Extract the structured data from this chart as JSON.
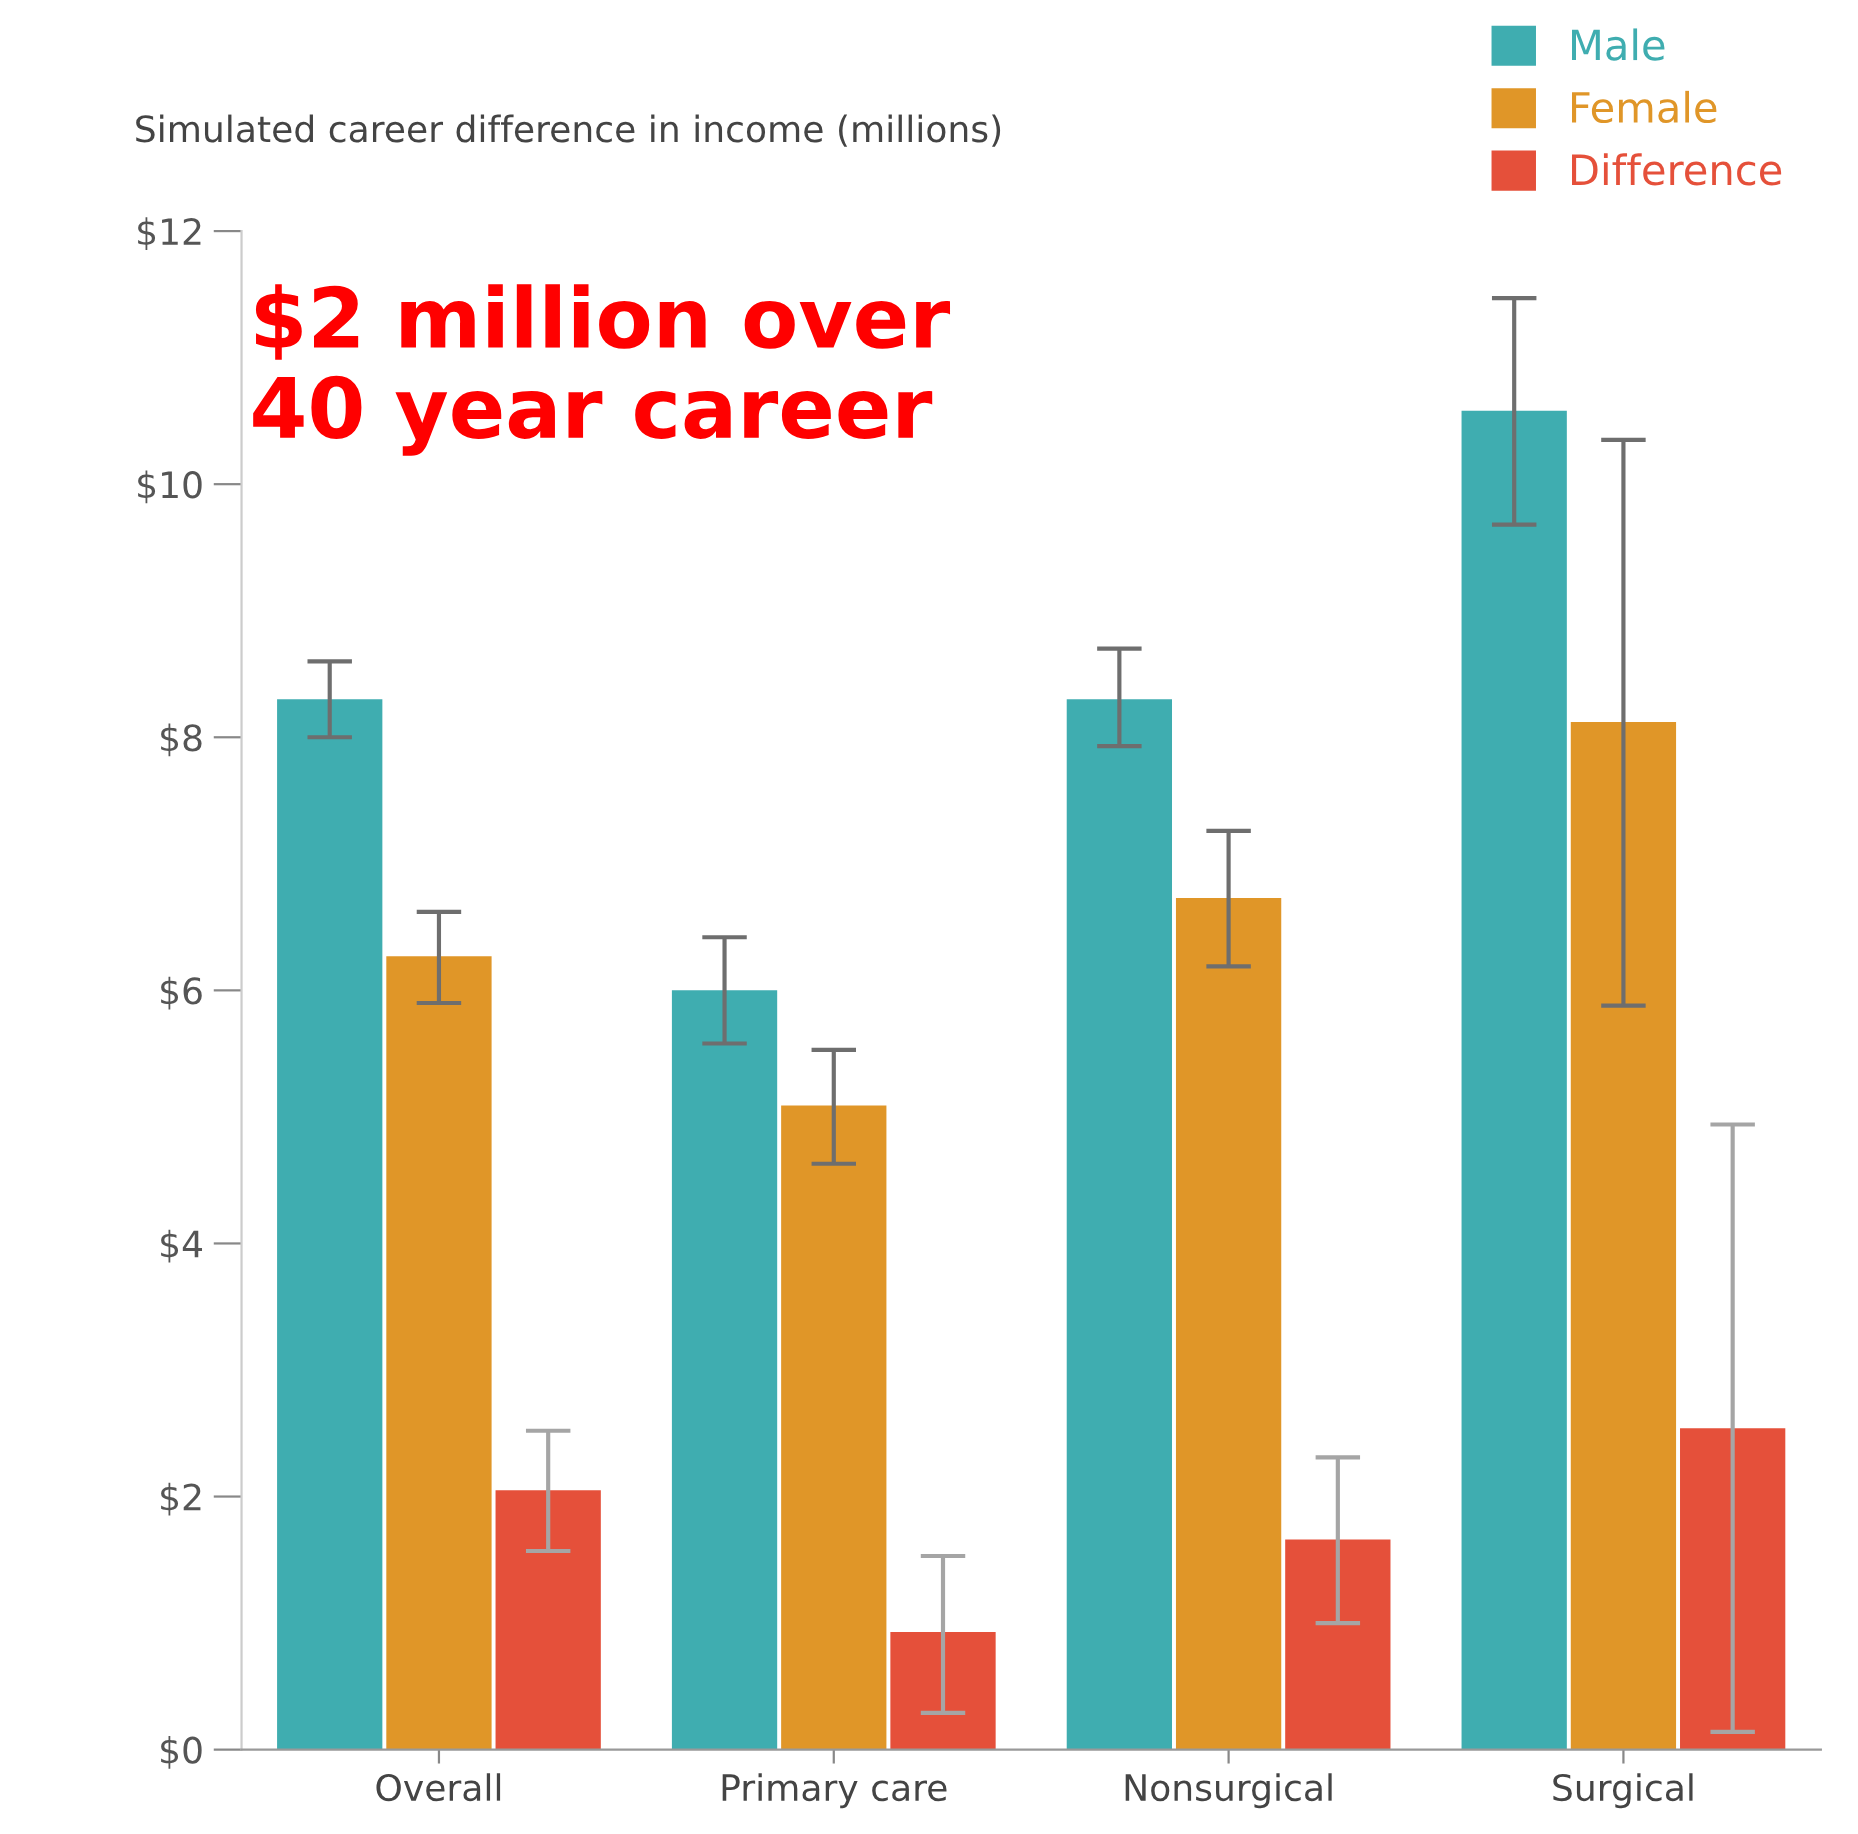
{
  "chart_data": {
    "type": "bar",
    "title": "Simulated career difference in income (millions)",
    "categories": [
      "Overall",
      "Primary care",
      "Nonsurgical",
      "Surgical"
    ],
    "series": [
      {
        "name": "Male",
        "color": "#3fadb0",
        "values": [
          8.3,
          6.0,
          8.3,
          10.58
        ],
        "errors": [
          [
            8.0,
            8.6
          ],
          [
            5.58,
            6.42
          ],
          [
            7.93,
            8.7
          ],
          [
            9.68,
            11.47
          ]
        ]
      },
      {
        "name": "Female",
        "color": "#e09628",
        "values": [
          6.27,
          5.09,
          6.73,
          8.12
        ],
        "errors": [
          [
            5.9,
            6.62
          ],
          [
            4.63,
            5.53
          ],
          [
            6.19,
            7.26
          ],
          [
            5.88,
            10.35
          ]
        ]
      },
      {
        "name": "Difference",
        "color": "#e5503a",
        "values": [
          2.05,
          0.93,
          1.66,
          2.54
        ],
        "errors": [
          [
            1.57,
            2.52
          ],
          [
            0.29,
            1.53
          ],
          [
            1.0,
            2.31
          ],
          [
            0.14,
            4.94
          ]
        ]
      }
    ],
    "ylim": [
      0,
      12
    ],
    "yticks": [
      {
        "value": 0,
        "label": "$0"
      },
      {
        "value": 2,
        "label": "$2"
      },
      {
        "value": 4,
        "label": "$4"
      },
      {
        "value": 6,
        "label": "$6"
      },
      {
        "value": 8,
        "label": "$8"
      },
      {
        "value": 10,
        "label": "$10"
      },
      {
        "value": 12,
        "label": "$12"
      }
    ],
    "annotations": [
      "$2 million over\n40 year career"
    ],
    "legend": "top right",
    "grid": false
  }
}
